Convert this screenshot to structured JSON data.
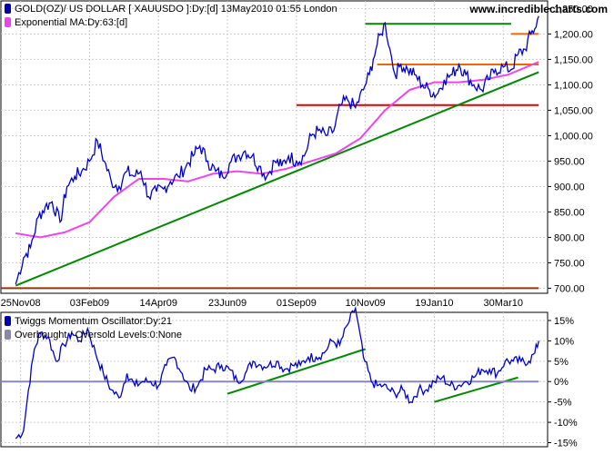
{
  "header": {
    "series_label": "GOLD(OZ)/ US DOLLAR [ XAUUSDO ]:Dy:[d]  13May2010 01:55 London",
    "ma_label": "Exponential MA:Dy:63:[d]",
    "site": "www.incrediblecharts.com"
  },
  "colors": {
    "price": "#0000cc",
    "ma": "#ee44ee",
    "trend_green": "#008800",
    "support_red": "#dd0000",
    "resistance_orange": "#ee6600",
    "bottom_brown": "#993300",
    "zero_line": "#8888bb",
    "legend_box_blue": "#0000aa",
    "legend_box_gray": "#8888aa"
  },
  "chart_data": [
    {
      "type": "line",
      "title": "GOLD(OZ)/ US DOLLAR [ XAUUSDO ]:Dy:[d]  13May2010 01:55 London",
      "x_tick_labels": [
        "25Nov08",
        "03Feb09",
        "14Apr09",
        "23Jun09",
        "01Sep09",
        "10Nov09",
        "19Jan10",
        "30Mar10"
      ],
      "x_tick_days": [
        0,
        70,
        140,
        210,
        280,
        350,
        420,
        490
      ],
      "ylim": [
        690,
        1265
      ],
      "y_ticks": [
        700,
        750,
        800,
        850,
        900,
        950,
        1000,
        1050,
        1100,
        1150,
        1200,
        1250
      ],
      "y_tick_labels": [
        "700.00",
        "750.00",
        "800.00",
        "850.00",
        "900.00",
        "950.00",
        "1,000.00",
        "1,050.00",
        "1,100.00",
        "1,150.00",
        "1,200.00",
        "1,250.00"
      ],
      "grid": true,
      "series": [
        {
          "name": "GOLD(OZ)/ US DOLLAR",
          "x": [
            -5,
            3,
            10,
            18,
            25,
            32,
            40,
            47,
            55,
            62,
            70,
            78,
            85,
            92,
            100,
            108,
            115,
            122,
            130,
            138,
            145,
            152,
            160,
            168,
            175,
            182,
            190,
            198,
            205,
            212,
            220,
            228,
            235,
            242,
            250,
            258,
            265,
            272,
            280,
            288,
            295,
            302,
            310,
            318,
            325,
            332,
            340,
            348,
            354,
            358,
            362,
            366,
            370,
            375,
            380,
            386,
            393,
            400,
            408,
            415,
            422,
            430,
            438,
            445,
            452,
            460,
            468,
            475,
            482,
            490,
            498,
            505,
            512,
            518,
            522,
            526
          ],
          "y": [
            708,
            760,
            780,
            840,
            860,
            870,
            830,
            900,
            920,
            930,
            950,
            990,
            950,
            910,
            900,
            930,
            920,
            930,
            880,
            890,
            895,
            910,
            920,
            940,
            960,
            980,
            950,
            930,
            920,
            945,
            960,
            970,
            960,
            940,
            920,
            950,
            940,
            960,
            950,
            960,
            1000,
            1010,
            1000,
            1010,
            1060,
            1070,
            1055,
            1090,
            1120,
            1150,
            1180,
            1200,
            1222,
            1170,
            1120,
            1140,
            1130,
            1120,
            1100,
            1090,
            1080,
            1110,
            1120,
            1140,
            1120,
            1100,
            1090,
            1110,
            1130,
            1135,
            1130,
            1160,
            1170,
            1200,
            1210,
            1235
          ]
        },
        {
          "name": "Exponential MA",
          "x": [
            -5,
            20,
            45,
            70,
            95,
            120,
            145,
            170,
            195,
            220,
            245,
            270,
            295,
            320,
            345,
            370,
            395,
            420,
            445,
            470,
            495,
            526
          ],
          "y": [
            808,
            800,
            810,
            830,
            880,
            915,
            915,
            910,
            925,
            930,
            925,
            935,
            950,
            965,
            995,
            1050,
            1090,
            1105,
            1105,
            1110,
            1120,
            1145
          ]
        }
      ],
      "annotations": [
        {
          "name": "resistance-1220",
          "color": "trend_green",
          "x": [
            350,
            498
          ],
          "y": [
            1220,
            1220
          ]
        },
        {
          "name": "resistance-1200",
          "color": "resistance_orange",
          "x": [
            498,
            526
          ],
          "y": [
            1200,
            1200
          ]
        },
        {
          "name": "resistance-1140",
          "color": "resistance_orange",
          "x": [
            362,
            526
          ],
          "y": [
            1140,
            1140
          ]
        },
        {
          "name": "support-1060",
          "color": "support_red",
          "x": [
            280,
            526
          ],
          "y": [
            1060,
            1060
          ]
        },
        {
          "name": "support-700",
          "color": "bottom_brown",
          "x": [
            -20,
            526
          ],
          "y": [
            700,
            700
          ]
        },
        {
          "name": "trendline",
          "color": "trend_green",
          "x": [
            -5,
            526
          ],
          "y": [
            705,
            1125
          ]
        }
      ]
    },
    {
      "type": "line",
      "title": "Twiggs Momentum Oscillator:Dy:21",
      "x_tick_days": [
        0,
        70,
        140,
        210,
        280,
        350,
        420,
        490
      ],
      "ylim": [
        -16,
        17
      ],
      "y_ticks": [
        -15,
        -10,
        -5,
        0,
        5,
        10,
        15
      ],
      "y_tick_labels": [
        "-15%",
        "-10%",
        "-5%",
        "0%",
        "5%",
        "10%",
        "15%"
      ],
      "grid": true,
      "series": [
        {
          "name": "Twiggs Momentum Oscillator",
          "x": [
            -5,
            3,
            8,
            14,
            20,
            28,
            36,
            44,
            52,
            60,
            68,
            76,
            84,
            92,
            100,
            108,
            116,
            124,
            132,
            140,
            148,
            156,
            164,
            172,
            180,
            188,
            196,
            204,
            212,
            220,
            228,
            236,
            244,
            252,
            260,
            268,
            276,
            284,
            292,
            300,
            308,
            316,
            324,
            332,
            340,
            348,
            356,
            362,
            368,
            374,
            380,
            388,
            396,
            404,
            412,
            420,
            428,
            436,
            444,
            452,
            460,
            468,
            476,
            484,
            492,
            500,
            508,
            516,
            522,
            526
          ],
          "y": [
            -14,
            -12,
            -2,
            8,
            12,
            11,
            5,
            9,
            12,
            10,
            13,
            7,
            2,
            -2,
            -4,
            2,
            -1,
            0,
            0,
            -1,
            4,
            6,
            2,
            -2,
            -1,
            3,
            3,
            4,
            3,
            0,
            2,
            5,
            4,
            4,
            5,
            3,
            4,
            4,
            6,
            6,
            7,
            10,
            9,
            14,
            18,
            6,
            0,
            -1,
            -1,
            -2,
            -3,
            -2,
            -5,
            -2,
            -2,
            0,
            1,
            -1,
            -1,
            0,
            1,
            3,
            3,
            2,
            5,
            5,
            5,
            5,
            7,
            10
          ]
        }
      ],
      "annotations": [
        {
          "name": "momentum-trend-1",
          "color": "trend_green",
          "x": [
            210,
            350
          ],
          "y": [
            -3,
            8
          ]
        },
        {
          "name": "momentum-trend-2",
          "color": "trend_green",
          "x": [
            420,
            505
          ],
          "y": [
            -5,
            1
          ]
        },
        {
          "name": "momentum-zero-line",
          "color": "zero_line",
          "x": [
            -20,
            526
          ],
          "y": [
            0,
            0
          ]
        }
      ]
    }
  ],
  "lower_panel": {
    "oscillator_label": "Twiggs Momentum Oscillator:Dy:21",
    "levels_label": "Overbought / Oversold Levels:0:None"
  }
}
